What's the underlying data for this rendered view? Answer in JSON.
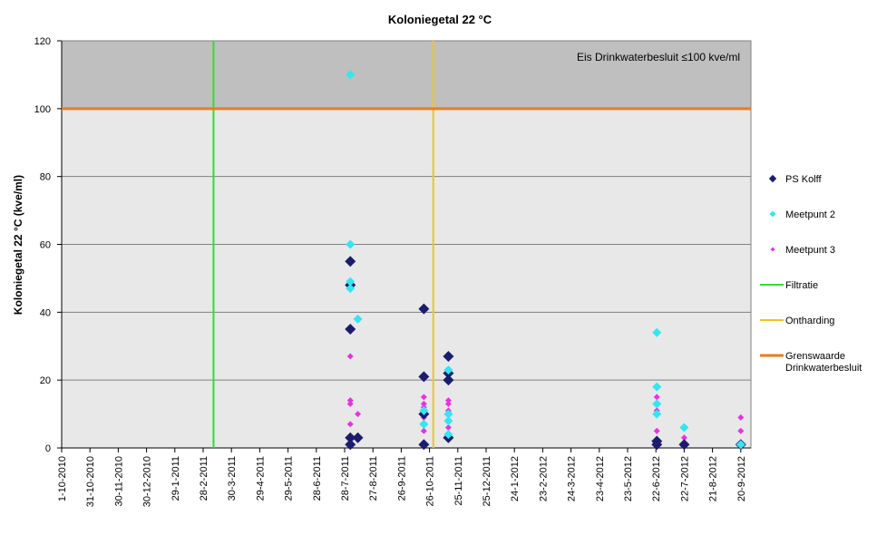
{
  "chart_data": {
    "type": "scatter",
    "title": "Koloniegetal 22 °C",
    "ylabel": "Koloniegetal 22 °C  (kve/ml)",
    "xlabel": "",
    "ylim": [
      0,
      120
    ],
    "yticks": [
      0,
      20,
      40,
      60,
      80,
      100,
      120
    ],
    "xlim": [
      "2010-10-01",
      "2012-10-15"
    ],
    "xtick_labels": [
      "1-10-2010",
      "31-10-2010",
      "30-11-2010",
      "30-12-2010",
      "29-1-2011",
      "28-2-2011",
      "30-3-2011",
      "29-4-2011",
      "29-5-2011",
      "28-6-2011",
      "28-7-2011",
      "27-8-2011",
      "26-9-2011",
      "26-10-2011",
      "25-11-2011",
      "25-12-2011",
      "24-1-2012",
      "23-2-2012",
      "24-3-2012",
      "23-4-2012",
      "23-5-2012",
      "22-6-2012",
      "22-7-2012",
      "21-8-2012",
      "20-9-2012"
    ],
    "annotation": "Eis Drinkwaterbesluit ≤100  kve/ml",
    "background_bands": {
      "above": "#bfbfbf",
      "below": "#e8e8e8"
    },
    "series": [
      {
        "name": "PS Kolff",
        "marker": "diamond-large",
        "color": "#1c1c6e",
        "points": [
          {
            "x": "2011-08-03",
            "y": 55
          },
          {
            "x": "2011-08-03",
            "y": 48
          },
          {
            "x": "2011-08-03",
            "y": 35
          },
          {
            "x": "2011-08-03",
            "y": 3
          },
          {
            "x": "2011-08-03",
            "y": 1
          },
          {
            "x": "2011-08-11",
            "y": 3
          },
          {
            "x": "2011-10-20",
            "y": 41
          },
          {
            "x": "2011-10-20",
            "y": 21
          },
          {
            "x": "2011-10-20",
            "y": 10
          },
          {
            "x": "2011-10-20",
            "y": 1
          },
          {
            "x": "2011-11-15",
            "y": 27
          },
          {
            "x": "2011-11-15",
            "y": 22
          },
          {
            "x": "2011-11-15",
            "y": 20
          },
          {
            "x": "2011-11-15",
            "y": 3
          },
          {
            "x": "2012-06-23",
            "y": 2
          },
          {
            "x": "2012-06-23",
            "y": 1
          },
          {
            "x": "2012-07-22",
            "y": 1
          },
          {
            "x": "2012-09-20",
            "y": 1
          }
        ]
      },
      {
        "name": "Meetpunt 2",
        "marker": "diamond",
        "color": "#33e6f0",
        "points": [
          {
            "x": "2011-08-03",
            "y": 110
          },
          {
            "x": "2011-08-03",
            "y": 60
          },
          {
            "x": "2011-08-03",
            "y": 49
          },
          {
            "x": "2011-08-03",
            "y": 47
          },
          {
            "x": "2011-08-11",
            "y": 38
          },
          {
            "x": "2011-10-20",
            "y": 11
          },
          {
            "x": "2011-10-20",
            "y": 7
          },
          {
            "x": "2011-11-15",
            "y": 23
          },
          {
            "x": "2011-11-15",
            "y": 10
          },
          {
            "x": "2011-11-15",
            "y": 8
          },
          {
            "x": "2011-11-15",
            "y": 4
          },
          {
            "x": "2012-06-23",
            "y": 34
          },
          {
            "x": "2012-06-23",
            "y": 18
          },
          {
            "x": "2012-06-23",
            "y": 13
          },
          {
            "x": "2012-06-23",
            "y": 10
          },
          {
            "x": "2012-07-22",
            "y": 6
          },
          {
            "x": "2012-09-20",
            "y": 1
          }
        ]
      },
      {
        "name": "Meetpunt 3",
        "marker": "diamond-small",
        "color": "#e633e0",
        "points": [
          {
            "x": "2011-08-03",
            "y": 27
          },
          {
            "x": "2011-08-03",
            "y": 14
          },
          {
            "x": "2011-08-03",
            "y": 13
          },
          {
            "x": "2011-08-03",
            "y": 7
          },
          {
            "x": "2011-08-11",
            "y": 10
          },
          {
            "x": "2011-10-20",
            "y": 15
          },
          {
            "x": "2011-10-20",
            "y": 13
          },
          {
            "x": "2011-10-20",
            "y": 12
          },
          {
            "x": "2011-10-20",
            "y": 9
          },
          {
            "x": "2011-10-20",
            "y": 5
          },
          {
            "x": "2011-11-15",
            "y": 14
          },
          {
            "x": "2011-11-15",
            "y": 13
          },
          {
            "x": "2011-11-15",
            "y": 11
          },
          {
            "x": "2011-11-15",
            "y": 6
          },
          {
            "x": "2011-11-15",
            "y": 3
          },
          {
            "x": "2012-06-23",
            "y": 15
          },
          {
            "x": "2012-06-23",
            "y": 11
          },
          {
            "x": "2012-06-23",
            "y": 5
          },
          {
            "x": "2012-07-22",
            "y": 3
          },
          {
            "x": "2012-09-20",
            "y": 9
          },
          {
            "x": "2012-09-20",
            "y": 5
          }
        ]
      }
    ],
    "reference_lines": [
      {
        "name": "Filtratie",
        "orientation": "vertical",
        "x": "2011-03-11",
        "color": "#33dd33"
      },
      {
        "name": "Ontharding",
        "orientation": "vertical",
        "x": "2011-10-30",
        "color": "#f2c12e"
      },
      {
        "name": "Grenswaarde Drinkwaterbesluit",
        "name_lines": [
          "Grenswaarde",
          "Drinkwaterbesluit"
        ],
        "orientation": "horizontal",
        "y": 100,
        "color": "#f07a1a"
      }
    ],
    "legend": {
      "placement": "right",
      "entries": [
        "PS Kolff",
        "Meetpunt 2",
        "Meetpunt 3",
        "Filtratie",
        "Ontharding",
        "Grenswaarde Drinkwaterbesluit"
      ]
    },
    "grid": true
  }
}
